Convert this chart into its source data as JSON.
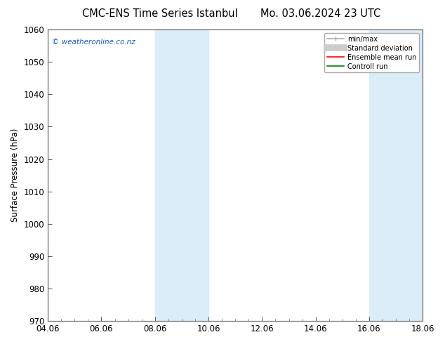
{
  "title_left": "CMC-ENS Time Series Istanbul",
  "title_right": "Mo. 03.06.2024 23 UTC",
  "ylabel": "Surface Pressure (hPa)",
  "ylim": [
    970,
    1060
  ],
  "yticks": [
    970,
    980,
    990,
    1000,
    1010,
    1020,
    1030,
    1040,
    1050,
    1060
  ],
  "xticks_labels": [
    "04.06",
    "06.06",
    "08.06",
    "10.06",
    "12.06",
    "14.06",
    "16.06",
    "18.06"
  ],
  "xtick_positions": [
    0,
    2,
    4,
    6,
    8,
    10,
    12,
    14
  ],
  "xlim": [
    0,
    14
  ],
  "shaded_bands": [
    {
      "x_start": 4,
      "x_end": 6,
      "color": "#daedf8"
    },
    {
      "x_start": 12,
      "x_end": 14,
      "color": "#daedf8"
    }
  ],
  "watermark_text": "© weatheronline.co.nz",
  "watermark_color": "#1a5fc0",
  "legend_entries": [
    {
      "label": "min/max",
      "color": "#aaaaaa",
      "lw": 1.2,
      "linestyle": "-"
    },
    {
      "label": "Standard deviation",
      "color": "#cccccc",
      "lw": 7,
      "linestyle": "-"
    },
    {
      "label": "Ensemble mean run",
      "color": "red",
      "lw": 1.2,
      "linestyle": "-"
    },
    {
      "label": "Controll run",
      "color": "green",
      "lw": 1.2,
      "linestyle": "-"
    }
  ],
  "bg_color": "#ffffff",
  "title_fontsize": 10.5,
  "tick_fontsize": 8.5,
  "ylabel_fontsize": 8.5,
  "watermark_fontsize": 7.5
}
